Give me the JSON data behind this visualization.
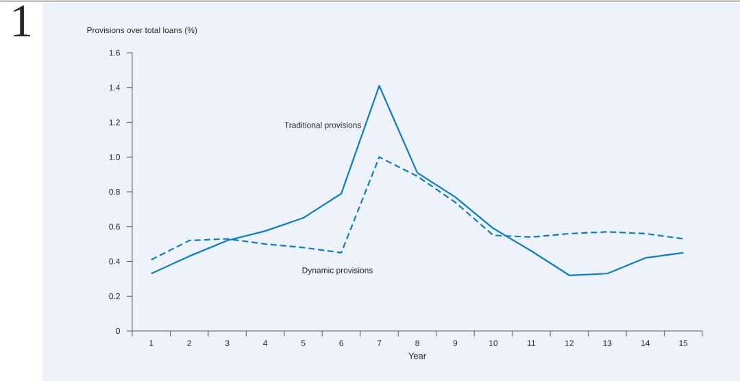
{
  "chart_data": {
    "type": "line",
    "ylabel": "Provisions over total loans (%)",
    "xlabel": "Year",
    "annotations": [
      "1"
    ],
    "categories": [
      "1",
      "2",
      "3",
      "4",
      "5",
      "6",
      "7",
      "8",
      "9",
      "10",
      "11",
      "12",
      "13",
      "14",
      "15"
    ],
    "ylim": [
      0,
      1.6
    ],
    "yticks": [
      0,
      0.2,
      0.4,
      0.6,
      0.8,
      {
        "value": 1,
        "label": "1.0"
      },
      1.2,
      1.4,
      1.6
    ],
    "series": [
      {
        "name": "Traditional provisions",
        "color": "#0a7cc1",
        "line_style": "solid",
        "values": [
          0.33,
          0.43,
          0.52,
          0.575,
          0.65,
          0.79,
          1.41,
          0.91,
          0.77,
          0.59,
          0.46,
          0.32,
          0.33,
          0.42,
          0.45
        ]
      },
      {
        "name": "Dynamic provisions",
        "color": "#0a7cc1",
        "line_style": "dashed",
        "values": [
          0.41,
          0.52,
          0.53,
          0.5,
          0.48,
          0.45,
          1.0,
          0.89,
          0.74,
          0.55,
          0.54,
          0.56,
          0.57,
          0.56,
          0.53
        ]
      }
    ]
  }
}
